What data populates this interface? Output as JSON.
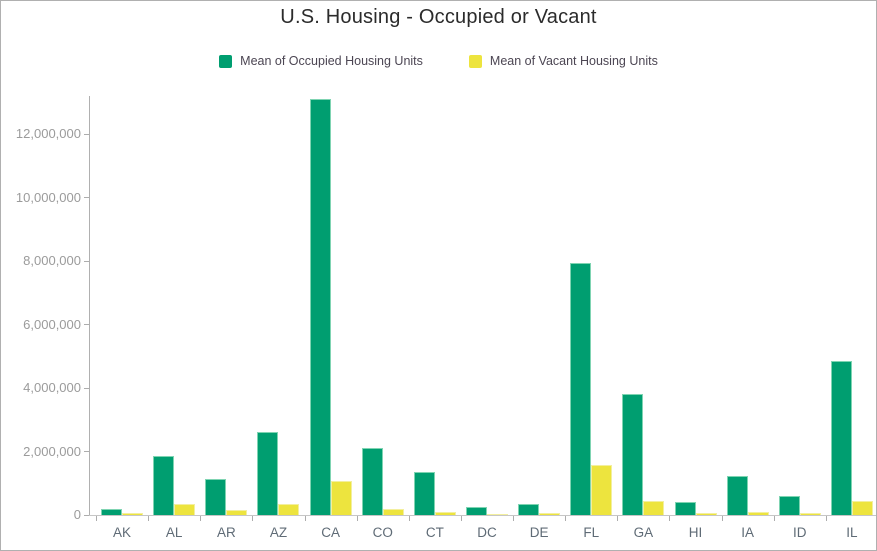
{
  "chart": {
    "title": "U.S. Housing - Occupied or Vacant"
  },
  "chart_data": {
    "type": "bar",
    "title": "U.S. Housing - Occupied or Vacant",
    "categories": [
      "AK",
      "AL",
      "AR",
      "AZ",
      "CA",
      "CO",
      "CT",
      "DC",
      "DE",
      "FL",
      "GA",
      "HI",
      "IA",
      "ID",
      "IL"
    ],
    "series": [
      {
        "name": "Mean of Occupied Housing Units",
        "color": "#009E70",
        "values": [
          200000,
          1860000,
          1150000,
          2600000,
          13100000,
          2100000,
          1350000,
          250000,
          340000,
          7930000,
          3810000,
          400000,
          1230000,
          610000,
          4850000
        ]
      },
      {
        "name": "Mean of Vacant Housing Units",
        "color": "#EDE43E",
        "values": [
          50000,
          350000,
          150000,
          350000,
          1070000,
          180000,
          90000,
          30000,
          60000,
          1590000,
          440000,
          50000,
          80000,
          50000,
          430000
        ]
      }
    ],
    "xlabel": "",
    "ylabel": "",
    "ylim": [
      0,
      13200000
    ],
    "yticks": [
      0,
      2000000,
      4000000,
      6000000,
      8000000,
      10000000,
      12000000
    ],
    "grid": false,
    "legend_position": "top",
    "colors": {
      "occupied_fill": "#009E70",
      "occupied_stroke": "#7FD4B2",
      "vacant_fill": "#EDE43E",
      "vacant_stroke": "#F3EF9E",
      "axis_line": "#B0B0B0",
      "y_label_text": "#9B9B9B",
      "x_label_text": "#5F6B76",
      "title_text": "#2B2B2B",
      "legend_text": "#4C4653"
    }
  }
}
